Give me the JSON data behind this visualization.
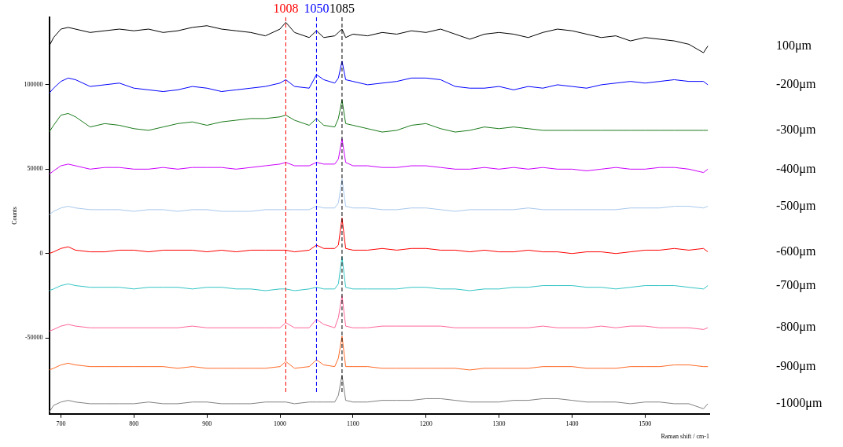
{
  "chart_data": {
    "type": "line",
    "xlabel": "Raman shift / cm-1",
    "ylabel": "Counts",
    "xlim": [
      684,
      1588
    ],
    "ylim": [
      -95000,
      140000
    ],
    "xticks": [
      700,
      800,
      900,
      1000,
      1100,
      1200,
      1300,
      1400,
      1500
    ],
    "yticks": [
      -50000,
      0,
      50000,
      100000
    ],
    "grid": false,
    "legend": false,
    "marker": "none",
    "line_style": "solid",
    "x": [
      684,
      690,
      700,
      710,
      720,
      740,
      760,
      780,
      800,
      820,
      840,
      860,
      880,
      900,
      920,
      940,
      960,
      980,
      1000,
      1008,
      1020,
      1040,
      1050,
      1060,
      1075,
      1080,
      1085,
      1090,
      1100,
      1120,
      1140,
      1160,
      1180,
      1200,
      1220,
      1240,
      1260,
      1280,
      1300,
      1320,
      1340,
      1360,
      1380,
      1400,
      1420,
      1440,
      1460,
      1480,
      1500,
      1520,
      1540,
      1560,
      1580,
      1586
    ],
    "ref_lines": [
      {
        "axis": "x",
        "value": 1008,
        "label": "1008",
        "color": "#ff0000",
        "line_style": "dashed"
      },
      {
        "axis": "x",
        "value": 1050,
        "label": "1050",
        "color": "#0000ff",
        "line_style": "dashed"
      },
      {
        "axis": "x",
        "value": 1085,
        "label": "1085",
        "color": "#000000",
        "line_style": "dashed"
      }
    ],
    "series": [
      {
        "name": "100μm",
        "color": "#000000",
        "values": [
          123000,
          128000,
          133000,
          134000,
          133000,
          131000,
          132000,
          133000,
          132000,
          133000,
          131000,
          132000,
          134000,
          135000,
          133000,
          132000,
          131000,
          129000,
          133000,
          137000,
          131000,
          128000,
          132000,
          128000,
          129000,
          131000,
          133000,
          128000,
          130000,
          129000,
          131000,
          130000,
          132000,
          131000,
          133000,
          130000,
          127000,
          130000,
          131000,
          130000,
          128000,
          131000,
          133000,
          132000,
          130000,
          128000,
          129000,
          126000,
          128000,
          127000,
          126000,
          124000,
          119000,
          123000
        ]
      },
      {
        "name": "-200μm",
        "color": "#0000ff",
        "values": [
          95000,
          98000,
          102000,
          104000,
          103000,
          99000,
          100000,
          101000,
          98000,
          97000,
          96000,
          97000,
          99000,
          98000,
          96000,
          97000,
          98000,
          99000,
          101000,
          103000,
          99000,
          98000,
          106000,
          103000,
          101000,
          104000,
          114000,
          103000,
          102000,
          100000,
          101000,
          102000,
          104000,
          104000,
          103000,
          99000,
          98000,
          98000,
          99000,
          97000,
          99000,
          98000,
          100000,
          99000,
          98000,
          100000,
          101000,
          102000,
          101000,
          102000,
          103000,
          102000,
          102000,
          100000
        ]
      },
      {
        "name": "-300μm",
        "color": "#1a7a1a",
        "values": [
          72000,
          76000,
          82000,
          83000,
          81000,
          75000,
          77000,
          76000,
          74000,
          73000,
          75000,
          77000,
          78000,
          76000,
          78000,
          79000,
          80000,
          80000,
          81000,
          82000,
          79000,
          76000,
          80000,
          76000,
          75000,
          80000,
          91000,
          77000,
          76000,
          74000,
          72000,
          73000,
          76000,
          77000,
          74000,
          72000,
          73000,
          75000,
          74000,
          75000,
          74000,
          73000,
          73000,
          73000,
          73000,
          73000,
          73000,
          73000,
          73000,
          73000,
          73000,
          73000,
          73000,
          73000
        ]
      },
      {
        "name": "-400μm",
        "color": "#cc00ff",
        "values": [
          47000,
          49000,
          52000,
          53000,
          52000,
          50000,
          51000,
          51000,
          50000,
          50000,
          51000,
          50000,
          51000,
          51000,
          51000,
          50000,
          51000,
          52000,
          53000,
          54000,
          52000,
          52000,
          54000,
          53000,
          53000,
          56000,
          68000,
          54000,
          52000,
          52000,
          51000,
          51000,
          52000,
          52000,
          51000,
          50000,
          50000,
          51000,
          50000,
          51000,
          50000,
          51000,
          50000,
          50000,
          49000,
          50000,
          51000,
          50000,
          50000,
          51000,
          51000,
          50000,
          48000,
          50000
        ]
      },
      {
        "name": "-500μm",
        "color": "#a8c8ec",
        "values": [
          23000,
          25000,
          27000,
          28000,
          27000,
          26000,
          26000,
          26000,
          25000,
          26000,
          26000,
          25000,
          26000,
          26000,
          25000,
          25000,
          25000,
          26000,
          26000,
          26000,
          26000,
          26000,
          28000,
          27000,
          27000,
          30000,
          44000,
          28000,
          27000,
          27000,
          26000,
          26000,
          27000,
          27000,
          26000,
          25000,
          26000,
          26000,
          26000,
          26000,
          27000,
          26000,
          26000,
          26000,
          26000,
          26000,
          26000,
          27000,
          27000,
          27000,
          28000,
          28000,
          27000,
          28000
        ]
      },
      {
        "name": "-600μm",
        "color": "#ff0000",
        "values": [
          0,
          1000,
          3000,
          4000,
          2000,
          1000,
          1000,
          2000,
          2000,
          1000,
          2000,
          2000,
          2000,
          1000,
          2000,
          1000,
          2000,
          2000,
          2000,
          2000,
          1000,
          2000,
          5000,
          3000,
          3000,
          5000,
          21000,
          3000,
          2000,
          2000,
          3000,
          2000,
          3000,
          3000,
          2000,
          2000,
          1000,
          2000,
          1000,
          1000,
          2000,
          1000,
          1000,
          0,
          1000,
          1000,
          0,
          1000,
          2000,
          2000,
          3000,
          2000,
          3000,
          1000
        ]
      },
      {
        "name": "-700μm",
        "color": "#33c4c4",
        "values": [
          -22000,
          -21000,
          -19000,
          -18000,
          -19000,
          -20000,
          -20000,
          -20000,
          -21000,
          -20000,
          -20000,
          -20000,
          -21000,
          -20000,
          -20000,
          -21000,
          -21000,
          -22000,
          -21000,
          -21000,
          -22000,
          -21000,
          -20000,
          -21000,
          -21000,
          -18000,
          -2000,
          -20000,
          -21000,
          -21000,
          -21000,
          -21000,
          -20000,
          -20000,
          -21000,
          -21000,
          -22000,
          -21000,
          -21000,
          -20000,
          -20000,
          -19000,
          -19000,
          -19000,
          -20000,
          -20000,
          -21000,
          -20000,
          -19000,
          -19000,
          -19000,
          -20000,
          -21000,
          -19000
        ]
      },
      {
        "name": "-800μm",
        "color": "#ff6699",
        "values": [
          -46000,
          -45000,
          -43000,
          -42000,
          -43000,
          -44000,
          -44000,
          -44000,
          -44000,
          -44000,
          -44000,
          -44000,
          -43000,
          -44000,
          -44000,
          -44000,
          -44000,
          -44000,
          -44000,
          -41000,
          -44000,
          -44000,
          -39000,
          -42000,
          -44000,
          -38000,
          -25000,
          -43000,
          -44000,
          -44000,
          -43000,
          -43000,
          -43000,
          -43000,
          -43000,
          -44000,
          -44000,
          -44000,
          -44000,
          -44000,
          -44000,
          -43000,
          -44000,
          -44000,
          -44000,
          -43000,
          -44000,
          -43000,
          -43000,
          -44000,
          -44000,
          -44000,
          -45000,
          -44000
        ]
      },
      {
        "name": "-900μm",
        "color": "#ff6a26",
        "values": [
          -69000,
          -68000,
          -66000,
          -65000,
          -66000,
          -67000,
          -67000,
          -67000,
          -67000,
          -67000,
          -67000,
          -68000,
          -67000,
          -68000,
          -68000,
          -68000,
          -68000,
          -68000,
          -67000,
          -64000,
          -68000,
          -67000,
          -63000,
          -66000,
          -67000,
          -62000,
          -49000,
          -67000,
          -67000,
          -67000,
          -68000,
          -68000,
          -68000,
          -68000,
          -68000,
          -68000,
          -69000,
          -68000,
          -68000,
          -68000,
          -68000,
          -67000,
          -67000,
          -67000,
          -68000,
          -68000,
          -68000,
          -67000,
          -67000,
          -67000,
          -66000,
          -66000,
          -67000,
          -67000
        ]
      },
      {
        "name": "-1000μm",
        "color": "#808080",
        "values": [
          -94000,
          -90000,
          -88000,
          -87000,
          -88000,
          -89000,
          -89000,
          -89000,
          -89000,
          -88000,
          -89000,
          -89000,
          -88000,
          -88000,
          -89000,
          -89000,
          -89000,
          -88000,
          -88000,
          -88000,
          -89000,
          -88000,
          -88000,
          -88000,
          -88000,
          -84000,
          -72000,
          -87000,
          -88000,
          -88000,
          -87000,
          -87000,
          -87000,
          -86000,
          -86000,
          -87000,
          -88000,
          -88000,
          -88000,
          -87000,
          -87000,
          -86000,
          -86000,
          -87000,
          -88000,
          -88000,
          -88000,
          -89000,
          -88000,
          -88000,
          -89000,
          -89000,
          -92000,
          -89000
        ]
      }
    ]
  }
}
